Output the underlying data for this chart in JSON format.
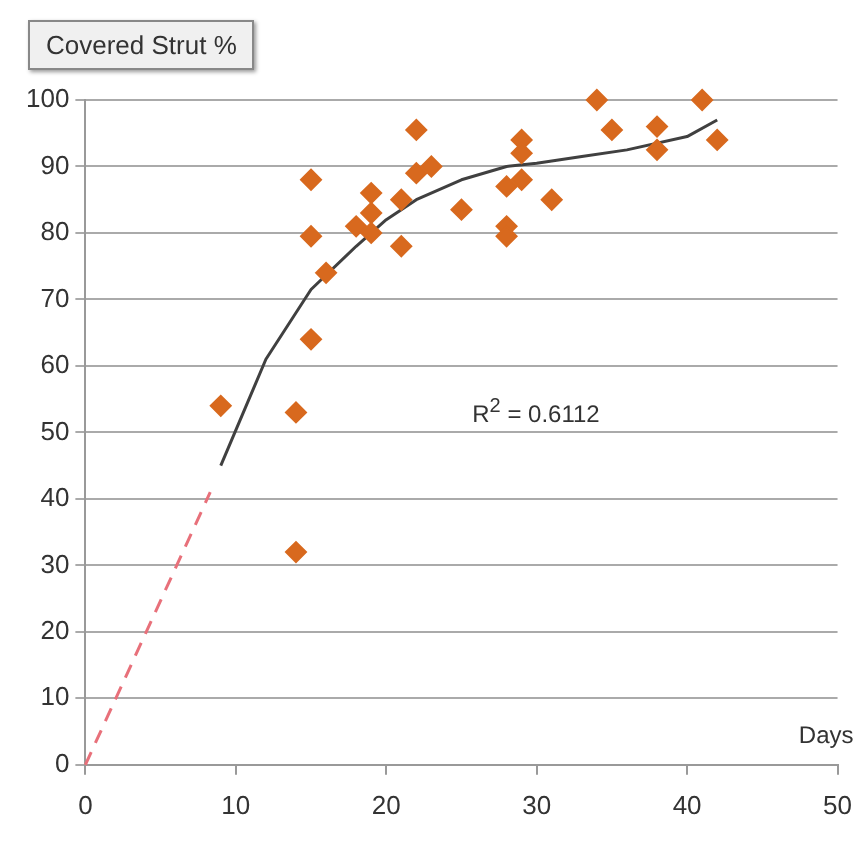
{
  "chart_data": {
    "type": "scatter",
    "title": "Covered Strut %",
    "xlabel": "Days",
    "x": [
      9,
      14,
      14,
      15,
      15,
      15,
      16,
      18,
      19,
      19,
      19,
      21,
      21,
      22,
      22,
      23,
      25,
      28,
      28,
      28,
      29,
      29,
      29,
      31,
      34,
      35,
      38,
      38,
      41,
      42
    ],
    "series": [
      {
        "color": "#d8691e",
        "values": [
          54,
          53,
          32,
          64,
          79.5,
          88,
          74,
          81,
          83,
          86,
          80,
          78,
          85,
          95.5,
          89,
          90,
          83.5,
          87,
          81,
          79.5,
          94,
          92,
          88,
          85,
          100,
          95.5,
          96,
          92.5,
          100,
          94
        ]
      },
      {
        "type": "line",
        "color": "#404040",
        "marker": "none",
        "x": [
          9,
          12,
          15,
          18,
          20,
          22,
          25,
          28,
          30,
          33,
          36,
          40,
          42
        ],
        "values": [
          45,
          61,
          71.5,
          78,
          82,
          85,
          88,
          90,
          90.5,
          91.5,
          92.5,
          94.5,
          97
        ]
      },
      {
        "type": "line",
        "color": "#e8707a",
        "marker": "none",
        "line_style": "dashed",
        "x": [
          0,
          8.3
        ],
        "values": [
          0,
          41
        ]
      }
    ],
    "annotations": [
      "R$^{2}$ = 0.6112"
    ],
    "xlim": [
      0,
      50
    ],
    "xticks": [
      0,
      10,
      20,
      30,
      40,
      50
    ],
    "ylim": [
      0,
      100
    ],
    "yticks": [
      0,
      10,
      20,
      30,
      40,
      50,
      60,
      70,
      80,
      90,
      100
    ],
    "grid": "y",
    "legend": false,
    "marker": "diamond"
  }
}
